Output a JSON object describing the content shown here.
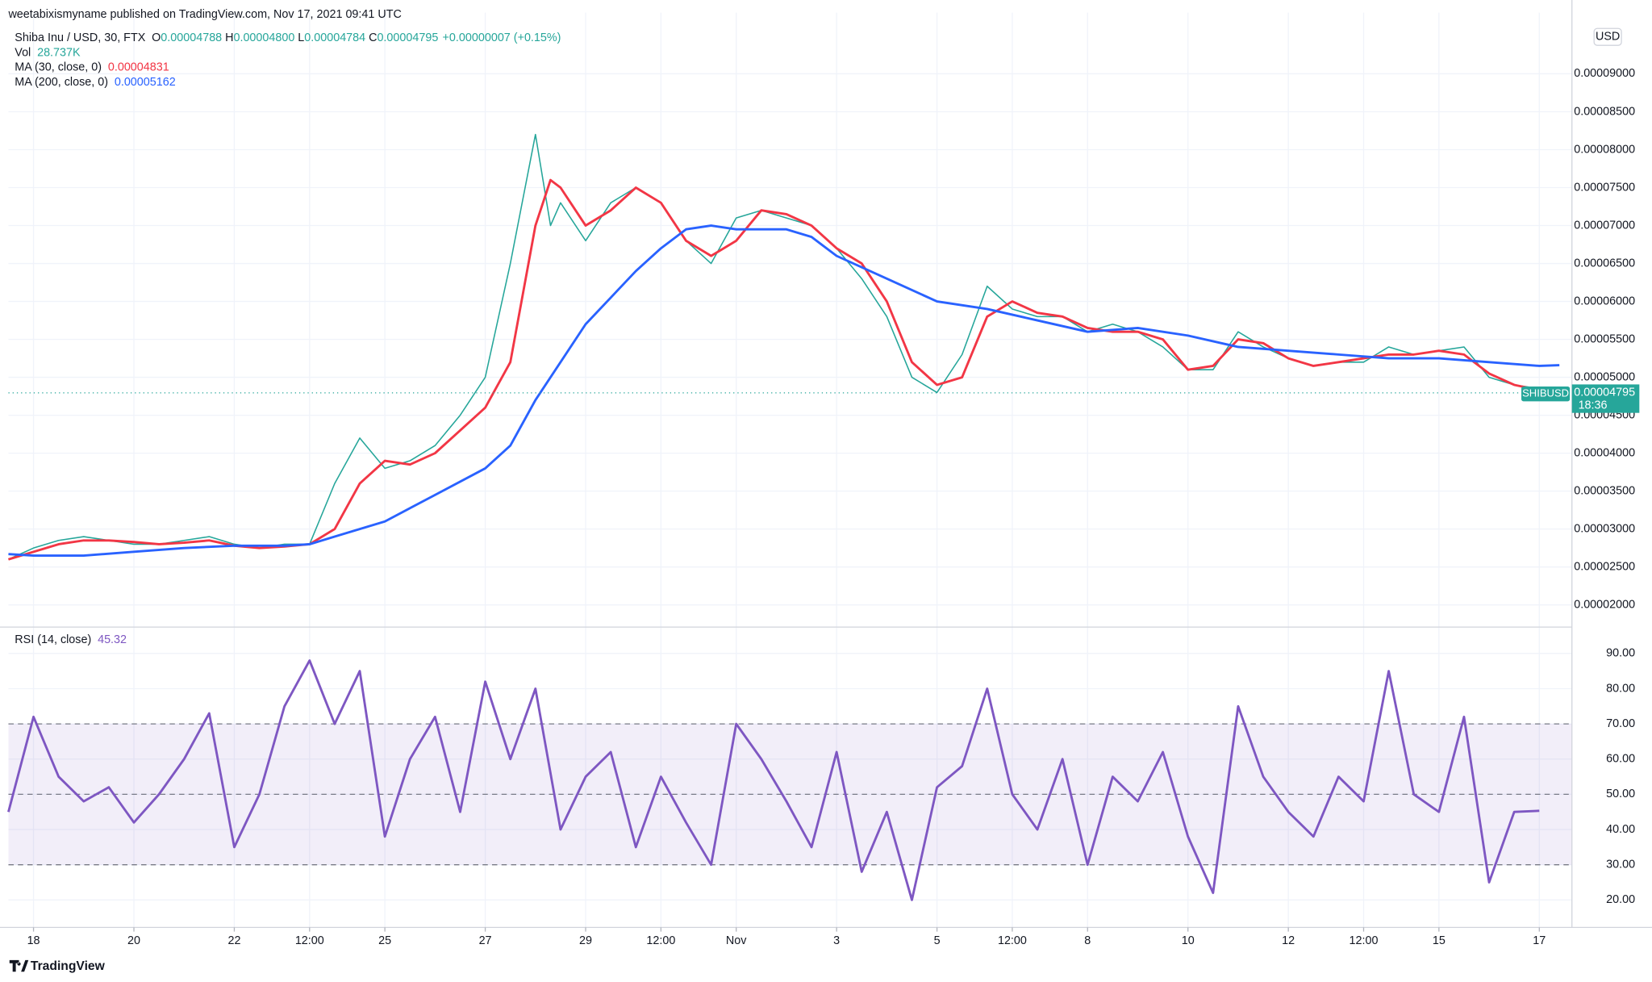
{
  "header": {
    "publisher": "weetabixismyname published on TradingView.com, Nov 17, 2021 09:41 UTC",
    "brand": "TradingView"
  },
  "chart_data": [
    {
      "type": "line",
      "ohlc": [
        {
          "label": "O",
          "value": "0.00004788"
        },
        {
          "label": "H",
          "value": "0.00004800"
        },
        {
          "label": "L",
          "value": "0.00004784"
        },
        {
          "label": "C",
          "value": "0.00004795"
        }
      ],
      "change": "+0.00000007 (+0.15%)",
      "volume": {
        "label": "Vol",
        "value": "28.737K"
      },
      "currency": "USD",
      "last_price": {
        "symbol": "SHIBUSD",
        "value": 4.795e-05,
        "label": "0.00004795",
        "countdown": "18:36"
      },
      "xlim": [
        17.5,
        48.65
      ],
      "ylim": [
        1.75e-05,
        9.667e-05
      ],
      "yticks": [
        {
          "value": 2e-05,
          "label": "0.00002000"
        },
        {
          "value": 2.5e-05,
          "label": "0.00002500"
        },
        {
          "value": 3e-05,
          "label": "0.00003000"
        },
        {
          "value": 3.5e-05,
          "label": "0.00003500"
        },
        {
          "value": 4e-05,
          "label": "0.00004000"
        },
        {
          "value": 4.5e-05,
          "label": "0.00004500"
        },
        {
          "value": 5e-05,
          "label": "0.00005000"
        },
        {
          "value": 5.5e-05,
          "label": "0.00005500"
        },
        {
          "value": 6e-05,
          "label": "0.00006000"
        },
        {
          "value": 6.5e-05,
          "label": "0.00006500"
        },
        {
          "value": 7e-05,
          "label": "0.00007000"
        },
        {
          "value": 7.5e-05,
          "label": "0.00007500"
        },
        {
          "value": 8e-05,
          "label": "0.00008000"
        },
        {
          "value": 8.5e-05,
          "label": "0.00008500"
        },
        {
          "value": 9e-05,
          "label": "0.00009000"
        }
      ],
      "grid": true,
      "series": [
        {
          "name": "Shiba Inu / USD, 30, FTX",
          "color": "#26a69a",
          "x": [
            17.5,
            18,
            18.5,
            19,
            19.5,
            20,
            20.5,
            21,
            21.5,
            22,
            22.5,
            23,
            23.5,
            24,
            24.5,
            25,
            25.5,
            26,
            26.5,
            27,
            27.5,
            28,
            28.3,
            28.5,
            29,
            29.5,
            30,
            30.5,
            31,
            31.5,
            32,
            32.5,
            33,
            33.5,
            34,
            34.5,
            35,
            35.5,
            36,
            36.5,
            37,
            37.5,
            38,
            38.5,
            39,
            39.5,
            40,
            40.5,
            41,
            41.5,
            42,
            42.5,
            43,
            43.5,
            44,
            44.5,
            45,
            45.5,
            46,
            46.5,
            47,
            47.5,
            48,
            48.2
          ],
          "values": [
            2.6e-05,
            2.75e-05,
            2.85e-05,
            2.9e-05,
            2.85e-05,
            2.8e-05,
            2.8e-05,
            2.85e-05,
            2.9e-05,
            2.8e-05,
            2.75e-05,
            2.8e-05,
            2.8e-05,
            3.6e-05,
            4.2e-05,
            3.8e-05,
            3.9e-05,
            4.1e-05,
            4.5e-05,
            5e-05,
            6.5e-05,
            8.2e-05,
            7e-05,
            7.3e-05,
            6.8e-05,
            7.3e-05,
            7.5e-05,
            7.3e-05,
            6.8e-05,
            6.5e-05,
            7.1e-05,
            7.2e-05,
            7.1e-05,
            7e-05,
            6.7e-05,
            6.3e-05,
            5.8e-05,
            5e-05,
            4.8e-05,
            5.3e-05,
            6.2e-05,
            5.9e-05,
            5.8e-05,
            5.8e-05,
            5.6e-05,
            5.7e-05,
            5.6e-05,
            5.4e-05,
            5.1e-05,
            5.1e-05,
            5.6e-05,
            5.4e-05,
            5.25e-05,
            5.15e-05,
            5.2e-05,
            5.2e-05,
            5.4e-05,
            5.3e-05,
            5.35e-05,
            5.4e-05,
            5e-05,
            4.9e-05,
            4.85e-05,
            4.795e-05
          ]
        },
        {
          "name": "MA (30, close, 0)",
          "color": "#f23645",
          "last_label": "0.00004831",
          "x": [
            17.5,
            18,
            18.5,
            19,
            19.5,
            20,
            20.5,
            21,
            21.5,
            22,
            22.5,
            23,
            23.5,
            24,
            24.5,
            25,
            25.5,
            26,
            26.5,
            27,
            27.5,
            28,
            28.3,
            28.5,
            29,
            29.5,
            30,
            30.5,
            31,
            31.5,
            32,
            32.5,
            33,
            33.5,
            34,
            34.5,
            35,
            35.5,
            36,
            36.5,
            37,
            37.5,
            38,
            38.5,
            39,
            39.5,
            40,
            40.5,
            41,
            41.5,
            42,
            42.5,
            43,
            43.5,
            44,
            44.5,
            45,
            45.5,
            46,
            46.5,
            47,
            47.5,
            48,
            48.2
          ],
          "values": [
            2.6e-05,
            2.7e-05,
            2.8e-05,
            2.85e-05,
            2.85e-05,
            2.83e-05,
            2.8e-05,
            2.82e-05,
            2.85e-05,
            2.78e-05,
            2.75e-05,
            2.77e-05,
            2.8e-05,
            3e-05,
            3.6e-05,
            3.9e-05,
            3.85e-05,
            4e-05,
            4.3e-05,
            4.6e-05,
            5.2e-05,
            7e-05,
            7.6e-05,
            7.5e-05,
            7e-05,
            7.2e-05,
            7.5e-05,
            7.3e-05,
            6.8e-05,
            6.6e-05,
            6.8e-05,
            7.2e-05,
            7.15e-05,
            7e-05,
            6.7e-05,
            6.5e-05,
            6e-05,
            5.2e-05,
            4.9e-05,
            5e-05,
            5.8e-05,
            6e-05,
            5.85e-05,
            5.8e-05,
            5.65e-05,
            5.6e-05,
            5.6e-05,
            5.5e-05,
            5.1e-05,
            5.15e-05,
            5.5e-05,
            5.45e-05,
            5.25e-05,
            5.15e-05,
            5.2e-05,
            5.25e-05,
            5.3e-05,
            5.3e-05,
            5.35e-05,
            5.3e-05,
            5.05e-05,
            4.9e-05,
            4.83e-05,
            4.831e-05
          ]
        },
        {
          "name": "MA (200, close, 0)",
          "color": "#2962ff",
          "last_label": "0.00005162",
          "x": [
            17.5,
            18,
            19,
            20,
            21,
            22,
            23,
            23.5,
            24,
            25,
            26,
            27,
            27.5,
            28,
            29,
            30,
            30.5,
            31,
            31.5,
            32,
            33,
            33.5,
            34,
            35,
            36,
            37,
            38,
            39,
            40,
            41,
            42,
            43,
            44,
            45,
            46,
            47,
            48,
            48.4
          ],
          "values": [
            2.67e-05,
            2.65e-05,
            2.65e-05,
            2.7e-05,
            2.75e-05,
            2.78e-05,
            2.78e-05,
            2.8e-05,
            2.9e-05,
            3.1e-05,
            3.45e-05,
            3.8e-05,
            4.1e-05,
            4.7e-05,
            5.7e-05,
            6.4e-05,
            6.7e-05,
            6.95e-05,
            7e-05,
            6.95e-05,
            6.95e-05,
            6.85e-05,
            6.6e-05,
            6.3e-05,
            6e-05,
            5.9e-05,
            5.75e-05,
            5.6e-05,
            5.65e-05,
            5.55e-05,
            5.4e-05,
            5.35e-05,
            5.3e-05,
            5.25e-05,
            5.25e-05,
            5.2e-05,
            5.15e-05,
            5.16e-05
          ]
        }
      ]
    },
    {
      "type": "line",
      "xlim": [
        17.5,
        48.65
      ],
      "ylim": [
        12.8,
        96.6
      ],
      "yticks": [
        {
          "value": 20,
          "label": "20.00"
        },
        {
          "value": 30,
          "label": "30.00"
        },
        {
          "value": 40,
          "label": "40.00"
        },
        {
          "value": 50,
          "label": "50.00"
        },
        {
          "value": 60,
          "label": "60.00"
        },
        {
          "value": 70,
          "label": "70.00"
        },
        {
          "value": 80,
          "label": "80.00"
        },
        {
          "value": 90,
          "label": "90.00"
        }
      ],
      "xticks": [
        {
          "value": 18,
          "label": "18"
        },
        {
          "value": 20,
          "label": "20"
        },
        {
          "value": 22,
          "label": "22"
        },
        {
          "value": 23.5,
          "label": "12:00"
        },
        {
          "value": 25,
          "label": "25"
        },
        {
          "value": 27,
          "label": "27"
        },
        {
          "value": 29,
          "label": "29"
        },
        {
          "value": 30.5,
          "label": "12:00"
        },
        {
          "value": 32,
          "label": "Nov"
        },
        {
          "value": 34,
          "label": "3"
        },
        {
          "value": 36,
          "label": "5"
        },
        {
          "value": 37.5,
          "label": "12:00"
        },
        {
          "value": 39,
          "label": "8"
        },
        {
          "value": 41,
          "label": "10"
        },
        {
          "value": 43,
          "label": "12"
        },
        {
          "value": 44.5,
          "label": "12:00"
        },
        {
          "value": 46,
          "label": "15"
        },
        {
          "value": 48,
          "label": "17"
        }
      ],
      "bands": [
        30,
        50,
        70
      ],
      "band_color": "#7e57c2",
      "grid": true,
      "series": [
        {
          "name": "RSI (14, close)",
          "color": "#7e57c2",
          "last_label": "45.32",
          "x": [
            17.5,
            18,
            18.5,
            19,
            19.5,
            20,
            20.5,
            21,
            21.5,
            22,
            22.5,
            23,
            23.5,
            24,
            24.5,
            25,
            25.5,
            26,
            26.5,
            27,
            27.5,
            28,
            28.5,
            29,
            29.5,
            30,
            30.5,
            31,
            31.5,
            32,
            32.5,
            33,
            33.5,
            34,
            34.5,
            35,
            35.5,
            36,
            36.5,
            37,
            37.5,
            38,
            38.5,
            39,
            39.5,
            40,
            40.5,
            41,
            41.5,
            42,
            42.5,
            43,
            43.5,
            44,
            44.5,
            45,
            45.5,
            46,
            46.5,
            47,
            47.5,
            48
          ],
          "values": [
            45,
            72,
            55,
            48,
            52,
            42,
            50,
            60,
            73,
            35,
            50,
            75,
            88,
            70,
            85,
            38,
            60,
            72,
            45,
            82,
            60,
            80,
            40,
            55,
            62,
            35,
            55,
            42,
            30,
            70,
            60,
            48,
            35,
            62,
            28,
            45,
            20,
            52,
            58,
            80,
            50,
            40,
            60,
            30,
            55,
            48,
            62,
            38,
            22,
            75,
            55,
            45,
            38,
            55,
            48,
            85,
            50,
            45,
            72,
            25,
            45,
            45.32
          ]
        }
      ]
    }
  ]
}
